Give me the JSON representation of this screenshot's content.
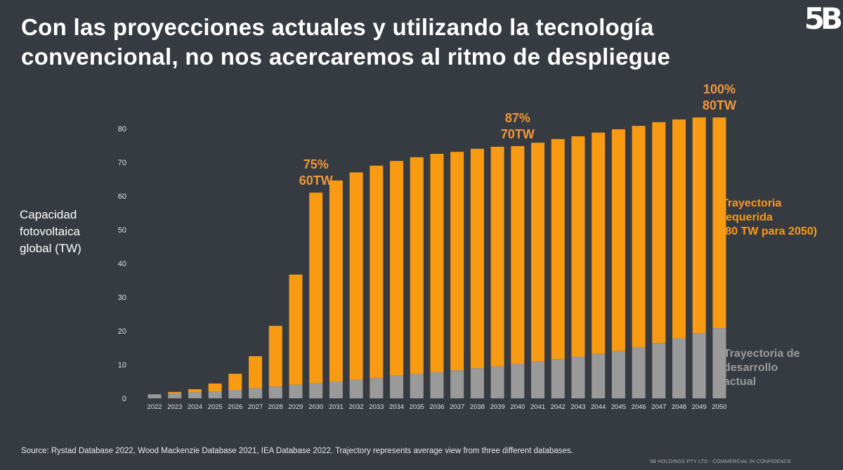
{
  "title": {
    "line1": "Con las proyecciones actuales y utilizando la tecnología",
    "line2": "convencional, no nos acercaremos al ritmo de despliegue"
  },
  "logo_text": "5B",
  "footer": {
    "source": "Source: Rystad Database 2022, Wood Mackenzie Database 2021, IEA Database 2022. Trajectory represents average view from three different databases.",
    "confidential": "5B HOLDINGS PTY LTD - COMMERCIAL IN CONFIDENCE"
  },
  "colors": {
    "background": "#363b42",
    "required": "#f89a12",
    "current": "#9a9a9a",
    "annotation": "#f0973a"
  },
  "chart_data": {
    "type": "bar",
    "stacked": true,
    "ylabel": [
      "Capacidad",
      "fotovoltaica",
      "global (TW)"
    ],
    "ylim": [
      0,
      80
    ],
    "yticks": [
      0,
      10,
      20,
      30,
      40,
      50,
      60,
      70,
      80
    ],
    "grid": false,
    "categories": [
      "2022",
      "2023",
      "2024",
      "2025",
      "2026",
      "2027",
      "2028",
      "2029",
      "2030",
      "2031",
      "2032",
      "2033",
      "2034",
      "2035",
      "2036",
      "2037",
      "2038",
      "2039",
      "2040",
      "2041",
      "2042",
      "2043",
      "2044",
      "2045",
      "2046",
      "2047",
      "2048",
      "2049",
      "2050"
    ],
    "series": [
      {
        "name": "Trayectoria de desarrollo actual",
        "legend_lines": [
          "Trayectoria de",
          "desarrollo",
          "actual"
        ],
        "values": [
          1.2,
          1.5,
          1.8,
          2.0,
          2.5,
          3.0,
          3.5,
          4.0,
          4.5,
          5.0,
          5.5,
          6.0,
          6.7,
          7.3,
          7.8,
          8.3,
          8.9,
          9.5,
          10.2,
          10.9,
          11.6,
          12.4,
          13.2,
          14.0,
          15.2,
          16.4,
          17.8,
          19.3,
          20.8
        ]
      },
      {
        "name": "Trayectoria requerida (80 TW para 2050)",
        "legend_lines": [
          "Trayectoria",
          "requerida",
          "(80 TW para 2050)"
        ],
        "totals": [
          1.2,
          1.9,
          2.7,
          4.4,
          7.3,
          12.5,
          21.5,
          36.7,
          61.0,
          64.6,
          67.0,
          69.0,
          70.4,
          71.5,
          72.5,
          73.1,
          74.0,
          74.6,
          74.8,
          75.8,
          76.9,
          77.7,
          78.8,
          79.8,
          80.8,
          81.9,
          82.7,
          83.3,
          83.3
        ]
      }
    ],
    "annotations": [
      {
        "category": "2030",
        "lines": [
          "75%",
          "60TW"
        ]
      },
      {
        "category": "2040",
        "lines": [
          "87%",
          "70TW"
        ]
      },
      {
        "category": "2050",
        "lines": [
          "100%",
          "80TW"
        ]
      }
    ]
  }
}
